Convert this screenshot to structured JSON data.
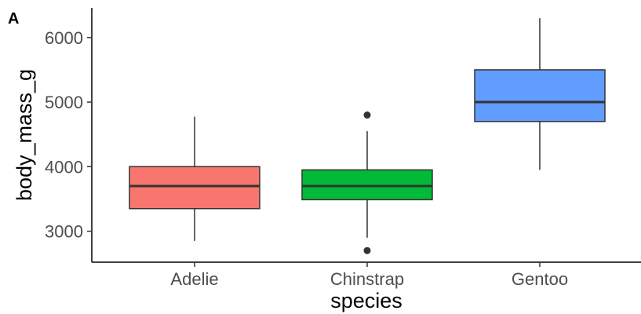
{
  "panel_tag": "A",
  "chart_data": {
    "type": "box",
    "xlabel": "species",
    "ylabel": "body_mass_g",
    "ylim": [
      2520,
      6460
    ],
    "yticks": [
      3000,
      4000,
      5000,
      6000
    ],
    "grid": false,
    "legend": "none",
    "categories": [
      "Adelie",
      "Chinstrap",
      "Gentoo"
    ],
    "boxes": [
      {
        "category": "Adelie",
        "color": "#F8766D",
        "whisker_low": 2850,
        "q1": 3350,
        "median": 3700,
        "q3": 4000,
        "whisker_high": 4775,
        "outliers": []
      },
      {
        "category": "Chinstrap",
        "color": "#00BA38",
        "whisker_low": 2900,
        "q1": 3488,
        "median": 3700,
        "q3": 3950,
        "whisker_high": 4550,
        "outliers": [
          2700,
          4800
        ]
      },
      {
        "category": "Gentoo",
        "color": "#619CFF",
        "whisker_low": 3950,
        "q1": 4700,
        "median": 5000,
        "q3": 5500,
        "whisker_high": 6300,
        "outliers": []
      }
    ]
  }
}
